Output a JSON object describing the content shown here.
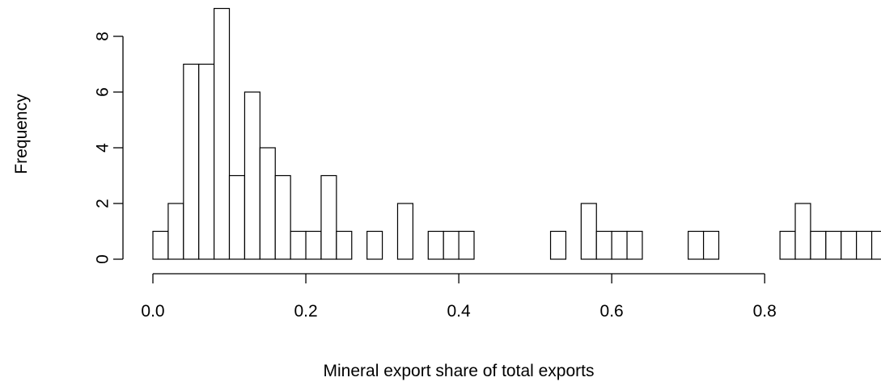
{
  "chart_data": {
    "type": "histogram",
    "xlabel": "Mineral export share of total exports",
    "ylabel": "Frequency",
    "bins": [
      0.0,
      0.02,
      0.04,
      0.06,
      0.08,
      0.1,
      0.12,
      0.14,
      0.16,
      0.18,
      0.2,
      0.22,
      0.24,
      0.26,
      0.28,
      0.3,
      0.32,
      0.34,
      0.36,
      0.38,
      0.4,
      0.42,
      0.44,
      0.46,
      0.48,
      0.5,
      0.52,
      0.54,
      0.56,
      0.58,
      0.6,
      0.62,
      0.64,
      0.66,
      0.68,
      0.7,
      0.72,
      0.74,
      0.76,
      0.78,
      0.8,
      0.82,
      0.84,
      0.86,
      0.88,
      0.9,
      0.92,
      0.94,
      0.96
    ],
    "values": [
      1,
      2,
      7,
      7,
      9,
      3,
      6,
      4,
      3,
      1,
      1,
      3,
      1,
      0,
      1,
      0,
      2,
      0,
      1,
      1,
      1,
      0,
      0,
      0,
      0,
      0,
      1,
      0,
      2,
      1,
      1,
      1,
      0,
      0,
      0,
      1,
      1,
      0,
      0,
      0,
      0,
      1,
      2,
      1,
      1,
      1,
      1,
      1
    ],
    "color": "#ffffff",
    "xlim": [
      0,
      0.95
    ],
    "ylim": [
      0,
      9
    ],
    "xticks": [
      {
        "value": 0,
        "label": "0.0"
      },
      0.2,
      0.4,
      0.6,
      0.8
    ],
    "yticks": [
      0,
      2,
      4,
      6,
      8
    ]
  }
}
